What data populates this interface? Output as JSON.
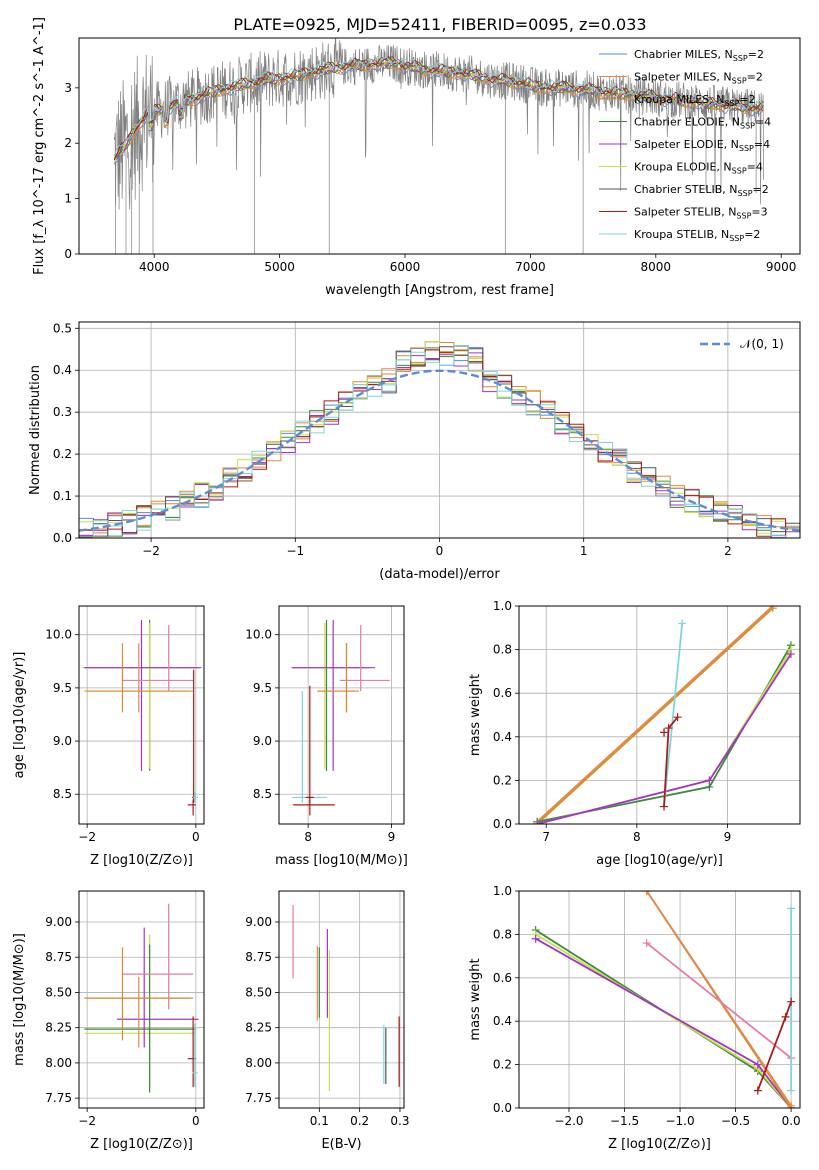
{
  "figure": {
    "title": "PLATE=0925, MJD=52411, FIBERID=0095, z=0.033"
  },
  "colors": {
    "chabrier_miles": "#5b86d8",
    "salpeter_miles": "#e2894b",
    "kroupa_miles": "#d98c2e",
    "chabrier_elodie": "#3c8a3c",
    "salpeter_elodie": "#a434c4",
    "kroupa_elodie": "#c8e04a",
    "chabrier_stelib": "#555555",
    "salpeter_stelib": "#a81c1c",
    "kroupa_stelib": "#7fd6dc",
    "pink": "#e57ba8",
    "observed": "#808080",
    "gaussian": "#5b8dd6"
  },
  "chart_data": [
    {
      "id": "spectrum",
      "type": "line",
      "title": "PLATE=0925, MJD=52411, FIBERID=0095, z=0.033",
      "xlabel": "wavelength [Angstrom, rest frame]",
      "ylabel": "Flux [f_λ 10^-17 erg cm^-2 s^-1 A^-1]",
      "xlim": [
        3400,
        9150
      ],
      "ylim": [
        0,
        3.9
      ],
      "xticks": [
        4000,
        5000,
        6000,
        7000,
        8000,
        9000
      ],
      "yticks": [
        0,
        1,
        2,
        3
      ],
      "grid": false,
      "legend_position": "top-right",
      "legend": [
        {
          "label": "Chabrier MILES, N",
          "sub": "SSP",
          "suffix": "=2",
          "color": "#5b86d8"
        },
        {
          "label": "Salpeter MILES, N",
          "sub": "SSP",
          "suffix": "=2",
          "color": "#e2894b"
        },
        {
          "label": "Kroupa MILES, N",
          "sub": "SSP",
          "suffix": "=2",
          "color": "#d98c2e"
        },
        {
          "label": "Chabrier ELODIE, N",
          "sub": "SSP",
          "suffix": "=4",
          "color": "#3c8a3c"
        },
        {
          "label": "Salpeter ELODIE, N",
          "sub": "SSP",
          "suffix": "=4",
          "color": "#a434c4"
        },
        {
          "label": "Kroupa ELODIE, N",
          "sub": "SSP",
          "suffix": "=4",
          "color": "#c8e04a"
        },
        {
          "label": "Chabrier STELIB, N",
          "sub": "SSP",
          "suffix": "=2",
          "color": "#555555"
        },
        {
          "label": "Salpeter STELIB, N",
          "sub": "SSP",
          "suffix": "=3",
          "color": "#a81c1c"
        },
        {
          "label": "Kroupa STELIB, N",
          "sub": "SSP",
          "suffix": "=2",
          "color": "#7fd6dc"
        }
      ],
      "continuum_anchors": [
        [
          3680,
          1.7
        ],
        [
          3750,
          1.9
        ],
        [
          3850,
          2.25
        ],
        [
          3950,
          2.55
        ],
        [
          4050,
          2.6
        ],
        [
          4150,
          2.7
        ],
        [
          4300,
          2.8
        ],
        [
          4500,
          2.95
        ],
        [
          4700,
          3.05
        ],
        [
          4900,
          3.15
        ],
        [
          5100,
          3.2
        ],
        [
          5300,
          3.3
        ],
        [
          5500,
          3.38
        ],
        [
          5700,
          3.42
        ],
        [
          5900,
          3.45
        ],
        [
          6100,
          3.35
        ],
        [
          6300,
          3.3
        ],
        [
          6500,
          3.25
        ],
        [
          6700,
          3.15
        ],
        [
          6900,
          3.1
        ],
        [
          7100,
          3.0
        ],
        [
          7300,
          3.0
        ],
        [
          7500,
          2.95
        ],
        [
          7700,
          2.9
        ],
        [
          7900,
          2.85
        ],
        [
          8100,
          2.8
        ],
        [
          8300,
          2.75
        ],
        [
          8500,
          2.7
        ],
        [
          8700,
          2.65
        ],
        [
          8850,
          2.62
        ]
      ],
      "observed_drops": [
        [
          3690,
          0.0
        ],
        [
          3775,
          0.0
        ],
        [
          3820,
          0.0
        ],
        [
          3880,
          0.0
        ],
        [
          3990,
          0.0
        ],
        [
          4800,
          0.0
        ],
        [
          5395,
          0.0
        ],
        [
          6800,
          0.0
        ],
        [
          7420,
          0.0
        ],
        [
          8400,
          1.15
        ],
        [
          8800,
          1.1
        ]
      ]
    },
    {
      "id": "residuals",
      "type": "line",
      "xlabel": "(data-model)/error",
      "ylabel": "Normed distribution",
      "xlim": [
        -2.5,
        2.5
      ],
      "ylim": [
        0,
        0.515
      ],
      "xticks": [
        -2,
        -1,
        0,
        1,
        2
      ],
      "yticks": [
        0.0,
        0.1,
        0.2,
        0.3,
        0.4,
        0.5
      ],
      "grid": true,
      "legend_position": "top-right",
      "legend": [
        {
          "label": "𝒩(0, 1)",
          "color": "#5b8dd6",
          "style": "dashed"
        }
      ],
      "bin_width": 0.1,
      "bin_start": -2.5,
      "bin_values": [
        0.02,
        0.025,
        0.03,
        0.035,
        0.04,
        0.05,
        0.06,
        0.07,
        0.08,
        0.095,
        0.11,
        0.12,
        0.14,
        0.16,
        0.18,
        0.2,
        0.21,
        0.23,
        0.25,
        0.26,
        0.28,
        0.3,
        0.32,
        0.34,
        0.36,
        0.38,
        0.39,
        0.41,
        0.43,
        0.44,
        0.46,
        0.45,
        0.43,
        0.42,
        0.4,
        0.39,
        0.37,
        0.35,
        0.33,
        0.31,
        0.29,
        0.27,
        0.25,
        0.23,
        0.21,
        0.19,
        0.17,
        0.15,
        0.13,
        0.11,
        0.1
      ]
    },
    {
      "id": "z_age",
      "type": "scatter",
      "xlabel": "Z [log10(Z/Z⊙)]",
      "ylabel": "age  [log10(age/yr)]",
      "xlim": [
        -2.15,
        0.15
      ],
      "ylim": [
        8.22,
        10.27
      ],
      "xticks": [
        -2,
        0
      ],
      "yticks": [
        8.5,
        9.0,
        9.5,
        10.0
      ],
      "grid": true,
      "points": [
        {
          "x": -0.85,
          "y": 9.69,
          "xerr": [
            1.2,
            0.85
          ],
          "yerr": [
            0.97,
            0.45
          ],
          "color": "#3c8a3c"
        },
        {
          "x": -0.85,
          "y": 9.69,
          "xerr": [
            1.25,
            0.9
          ],
          "yerr": [
            0.95,
            0.42
          ],
          "color": "#c8e04a"
        },
        {
          "x": -1.0,
          "y": 9.69,
          "xerr": [
            1.05,
            1.1
          ],
          "yerr": [
            0.97,
            0.45
          ],
          "color": "#a434c4"
        },
        {
          "x": -1.05,
          "y": 9.47,
          "xerr": [
            0.95,
            1.0
          ],
          "yerr": [
            0.2,
            0.45
          ],
          "color": "#e2894b"
        },
        {
          "x": -1.35,
          "y": 9.47,
          "xerr": [
            0.7,
            1.2
          ],
          "yerr": [
            0.2,
            0.45
          ],
          "color": "#d98c2e"
        },
        {
          "x": -0.5,
          "y": 9.57,
          "xerr": [
            0.85,
            0.45
          ],
          "yerr": [
            0.1,
            0.52
          ],
          "color": "#e57ba8"
        },
        {
          "x": -0.05,
          "y": 8.4,
          "xerr": [
            0.1,
            0.05
          ],
          "yerr": [
            0.1,
            0.05
          ],
          "color": "#a81c1c"
        },
        {
          "x": -0.04,
          "y": 8.47,
          "xerr": [
            0.03,
            0.03
          ],
          "yerr": [
            0.05,
            1.2
          ],
          "color": "#a81c1c"
        },
        {
          "x": -0.02,
          "y": 8.47,
          "xerr": [
            0.03,
            0.06
          ],
          "yerr": [
            0.05,
            0.05
          ],
          "color": "#7fd6dc"
        }
      ]
    },
    {
      "id": "mass_age",
      "type": "scatter",
      "xlabel": "mass [log10(M/M⊙)]",
      "ylabel": "",
      "xlim": [
        7.65,
        9.15
      ],
      "ylim": [
        8.22,
        10.27
      ],
      "xticks": [
        8,
        9
      ],
      "yticks": [
        8.5,
        9.0,
        9.5,
        10.0
      ],
      "grid": true,
      "points": [
        {
          "x": 8.22,
          "y": 9.69,
          "xerr": [
            0.4,
            0.5
          ],
          "yerr": [
            0.97,
            0.45
          ],
          "color": "#3c8a3c"
        },
        {
          "x": 8.2,
          "y": 9.69,
          "xerr": [
            0.38,
            0.52
          ],
          "yerr": [
            0.95,
            0.42
          ],
          "color": "#c8e04a"
        },
        {
          "x": 8.3,
          "y": 9.69,
          "xerr": [
            0.5,
            0.5
          ],
          "yerr": [
            0.97,
            0.45
          ],
          "color": "#a434c4"
        },
        {
          "x": 8.46,
          "y": 9.47,
          "xerr": [
            0.35,
            0.15
          ],
          "yerr": [
            0.2,
            0.45
          ],
          "color": "#e2894b"
        },
        {
          "x": 8.46,
          "y": 9.47,
          "xerr": [
            0.35,
            0.1
          ],
          "yerr": [
            0.2,
            0.45
          ],
          "color": "#d98c2e"
        },
        {
          "x": 8.63,
          "y": 9.57,
          "xerr": [
            0.25,
            0.35
          ],
          "yerr": [
            0.1,
            0.52
          ],
          "color": "#e57ba8"
        },
        {
          "x": 8.02,
          "y": 8.4,
          "xerr": [
            0.2,
            0.3
          ],
          "yerr": [
            0.1,
            0.05
          ],
          "color": "#a81c1c"
        },
        {
          "x": 7.93,
          "y": 8.47,
          "xerr": [
            0.12,
            0.3
          ],
          "yerr": [
            0.05,
            1.0
          ],
          "color": "#7fd6dc"
        },
        {
          "x": 8.02,
          "y": 8.47,
          "xerr": [
            0.05,
            0.05
          ],
          "yerr": [
            0.05,
            1.05
          ],
          "color": "#a81c1c"
        }
      ]
    },
    {
      "id": "age_weight",
      "type": "line",
      "xlabel": "age  [log10(age/yr)]",
      "ylabel": "mass weight",
      "xlim": [
        6.7,
        9.8
      ],
      "ylim": [
        0.0,
        1.0
      ],
      "xticks": [
        7,
        8,
        9
      ],
      "yticks": [
        0.0,
        0.2,
        0.4,
        0.6,
        0.8,
        1.0
      ],
      "grid": true,
      "series": [
        {
          "color": "#e2894b",
          "x": [
            6.9,
            9.5
          ],
          "y": [
            0.01,
            1.0
          ]
        },
        {
          "color": "#d98c2e",
          "x": [
            6.9,
            9.5
          ],
          "y": [
            0.0,
            0.99
          ]
        },
        {
          "color": "#3c8a3c",
          "x": [
            6.9,
            8.8,
            9.7
          ],
          "y": [
            0.01,
            0.17,
            0.82
          ]
        },
        {
          "color": "#c8e04a",
          "x": [
            6.9,
            8.8,
            9.7
          ],
          "y": [
            0.0,
            0.2,
            0.8
          ]
        },
        {
          "color": "#a434c4",
          "x": [
            6.9,
            8.8,
            9.7
          ],
          "y": [
            0.0,
            0.2,
            0.78
          ]
        },
        {
          "color": "#7fd6dc",
          "x": [
            8.3,
            8.5
          ],
          "y": [
            0.08,
            0.92
          ]
        },
        {
          "color": "#a81c1c",
          "x": [
            8.3,
            8.35,
            8.45
          ],
          "y": [
            0.08,
            0.44,
            0.49
          ]
        },
        {
          "color": "#a81c1c",
          "x": [
            8.3,
            8.3
          ],
          "y": [
            0.42,
            0.42
          ]
        }
      ]
    },
    {
      "id": "z_mass",
      "type": "scatter",
      "xlabel": "Z [log10(Z/Z⊙)]",
      "ylabel": "mass [log10(M/M⊙)]",
      "xlim": [
        -2.15,
        0.15
      ],
      "ylim": [
        7.68,
        9.22
      ],
      "xticks": [
        -2,
        0
      ],
      "yticks": [
        7.75,
        8.0,
        8.25,
        8.5,
        8.75,
        9.0
      ],
      "grid": true,
      "points": [
        {
          "x": -0.85,
          "y": 8.21,
          "xerr": [
            1.2,
            0.85
          ],
          "yerr": [
            0.4,
            0.7
          ],
          "color": "#c8e04a"
        },
        {
          "x": -0.85,
          "y": 8.24,
          "xerr": [
            1.2,
            0.85
          ],
          "yerr": [
            0.45,
            0.6
          ],
          "color": "#3c8a3c"
        },
        {
          "x": -0.95,
          "y": 8.31,
          "xerr": [
            0.5,
            1.0
          ],
          "yerr": [
            0.2,
            0.65
          ],
          "color": "#a434c4"
        },
        {
          "x": -1.05,
          "y": 8.46,
          "xerr": [
            0.95,
            1.0
          ],
          "yerr": [
            0.35,
            0.15
          ],
          "color": "#e2894b"
        },
        {
          "x": -1.35,
          "y": 8.46,
          "xerr": [
            0.7,
            1.25
          ],
          "yerr": [
            0.3,
            0.36
          ],
          "color": "#d98c2e"
        },
        {
          "x": -0.5,
          "y": 8.63,
          "xerr": [
            0.85,
            0.45
          ],
          "yerr": [
            0.25,
            0.5
          ],
          "color": "#e57ba8"
        },
        {
          "x": -0.05,
          "y": 8.03,
          "xerr": [
            0.1,
            0.05
          ],
          "yerr": [
            0.2,
            0.3
          ],
          "color": "#a81c1c"
        },
        {
          "x": -0.02,
          "y": 7.93,
          "xerr": [
            0.04,
            0.05
          ],
          "yerr": [
            0.1,
            0.35
          ],
          "color": "#7fd6dc"
        }
      ]
    },
    {
      "id": "ebv_mass",
      "type": "scatter",
      "xlabel": "E(B-V)",
      "ylabel": "",
      "xlim": [
        0.0,
        0.31
      ],
      "ylim": [
        7.68,
        9.22
      ],
      "xticks": [
        0.1,
        0.2,
        0.3
      ],
      "yticks": [
        7.75,
        8.0,
        8.25,
        8.5,
        8.75,
        9.0
      ],
      "grid": true,
      "points": [
        {
          "x": 0.035,
          "y": 8.85,
          "yerr": [
            0.25,
            0.27
          ],
          "color": "#e57ba8"
        },
        {
          "x": 0.095,
          "y": 8.55,
          "yerr": [
            0.25,
            0.28
          ],
          "color": "#e2894b"
        },
        {
          "x": 0.1,
          "y": 8.5,
          "yerr": [
            0.18,
            0.32
          ],
          "color": "#3c8a3c"
        },
        {
          "x": 0.12,
          "y": 8.62,
          "yerr": [
            0.3,
            0.33
          ],
          "color": "#a434c4"
        },
        {
          "x": 0.125,
          "y": 8.3,
          "yerr": [
            0.5,
            0.5
          ],
          "color": "#c8e04a"
        },
        {
          "x": 0.26,
          "y": 8.05,
          "yerr": [
            0.2,
            0.22
          ],
          "color": "#7fd6dc"
        },
        {
          "x": 0.265,
          "y": 8.05,
          "yerr": [
            0.2,
            0.2
          ],
          "color": "#555555"
        },
        {
          "x": 0.298,
          "y": 8.08,
          "yerr": [
            0.25,
            0.25
          ],
          "color": "#a81c1c"
        }
      ]
    },
    {
      "id": "z_weight",
      "type": "line",
      "xlabel": "Z [log10(Z/Z⊙)]",
      "ylabel": "mass weight",
      "xlim": [
        -2.45,
        0.08
      ],
      "ylim": [
        0.0,
        1.0
      ],
      "xticks": [
        -2.0,
        -1.5,
        -1.0,
        -0.5,
        0.0
      ],
      "yticks": [
        0.0,
        0.2,
        0.4,
        0.6,
        0.8,
        1.0
      ],
      "grid": true,
      "series": [
        {
          "color": "#3c8a3c",
          "x": [
            -2.3,
            -0.3,
            0.0
          ],
          "y": [
            0.82,
            0.17,
            0.0
          ]
        },
        {
          "color": "#c8e04a",
          "x": [
            -2.3,
            -0.3,
            0.0
          ],
          "y": [
            0.8,
            0.18,
            0.0
          ]
        },
        {
          "color": "#a434c4",
          "x": [
            -2.3,
            -0.3,
            0.0
          ],
          "y": [
            0.78,
            0.2,
            0.0
          ]
        },
        {
          "color": "#d98c2e",
          "x": [
            -1.3,
            0.0
          ],
          "y": [
            1.0,
            0.0
          ]
        },
        {
          "color": "#e2894b",
          "x": [
            -1.3,
            0.0
          ],
          "y": [
            1.0,
            0.01
          ]
        },
        {
          "color": "#e57ba8",
          "x": [
            -1.3,
            0.0
          ],
          "y": [
            0.76,
            0.23
          ]
        },
        {
          "color": "#7fd6dc",
          "x": [
            0.0,
            0.0
          ],
          "y": [
            0.08,
            0.92
          ]
        },
        {
          "color": "#a81c1c",
          "x": [
            -0.3,
            -0.05,
            0.0
          ],
          "y": [
            0.08,
            0.42,
            0.49
          ]
        }
      ]
    }
  ]
}
